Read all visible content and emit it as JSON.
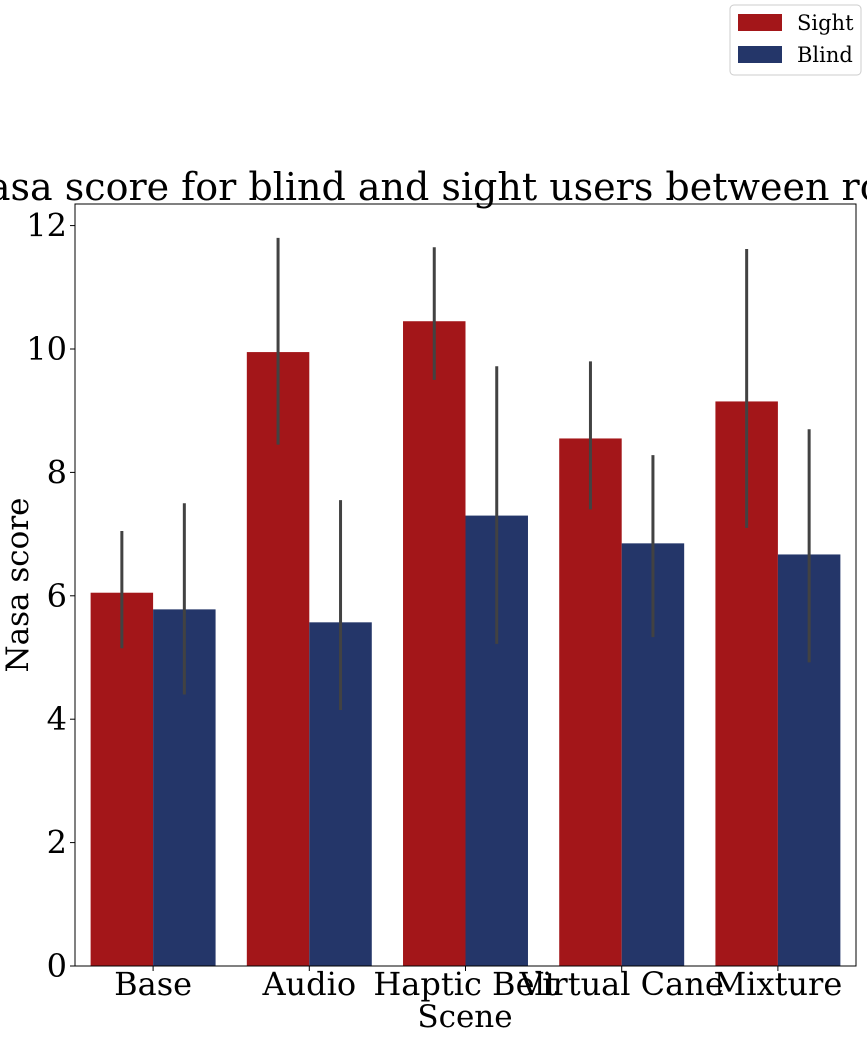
{
  "chart_data": {
    "type": "bar",
    "title": "Nasa score for blind and sight users between rounds",
    "xlabel": "Scene",
    "ylabel": "Nasa score",
    "categories": [
      "Base",
      "Audio",
      "Haptic Belt",
      "Virtual Cane",
      "Mixture"
    ],
    "ylim": [
      0,
      12.35
    ],
    "yticks": [
      0,
      2,
      4,
      6,
      8,
      10,
      12
    ],
    "series": [
      {
        "name": "Sight",
        "color": "#a31619",
        "values": [
          6.05,
          9.95,
          10.45,
          8.55,
          9.15
        ],
        "ci_low": [
          5.15,
          8.45,
          9.5,
          7.4,
          7.1
        ],
        "ci_high": [
          7.05,
          11.8,
          11.65,
          9.8,
          11.62
        ]
      },
      {
        "name": "Blind",
        "color": "#243669",
        "values": [
          5.78,
          5.57,
          7.3,
          6.85,
          6.67
        ],
        "ci_low": [
          4.4,
          4.15,
          5.22,
          5.33,
          4.92
        ],
        "ci_high": [
          7.5,
          7.55,
          9.72,
          8.28,
          8.7
        ]
      }
    ],
    "grid": false,
    "legend_position": "top-right"
  }
}
